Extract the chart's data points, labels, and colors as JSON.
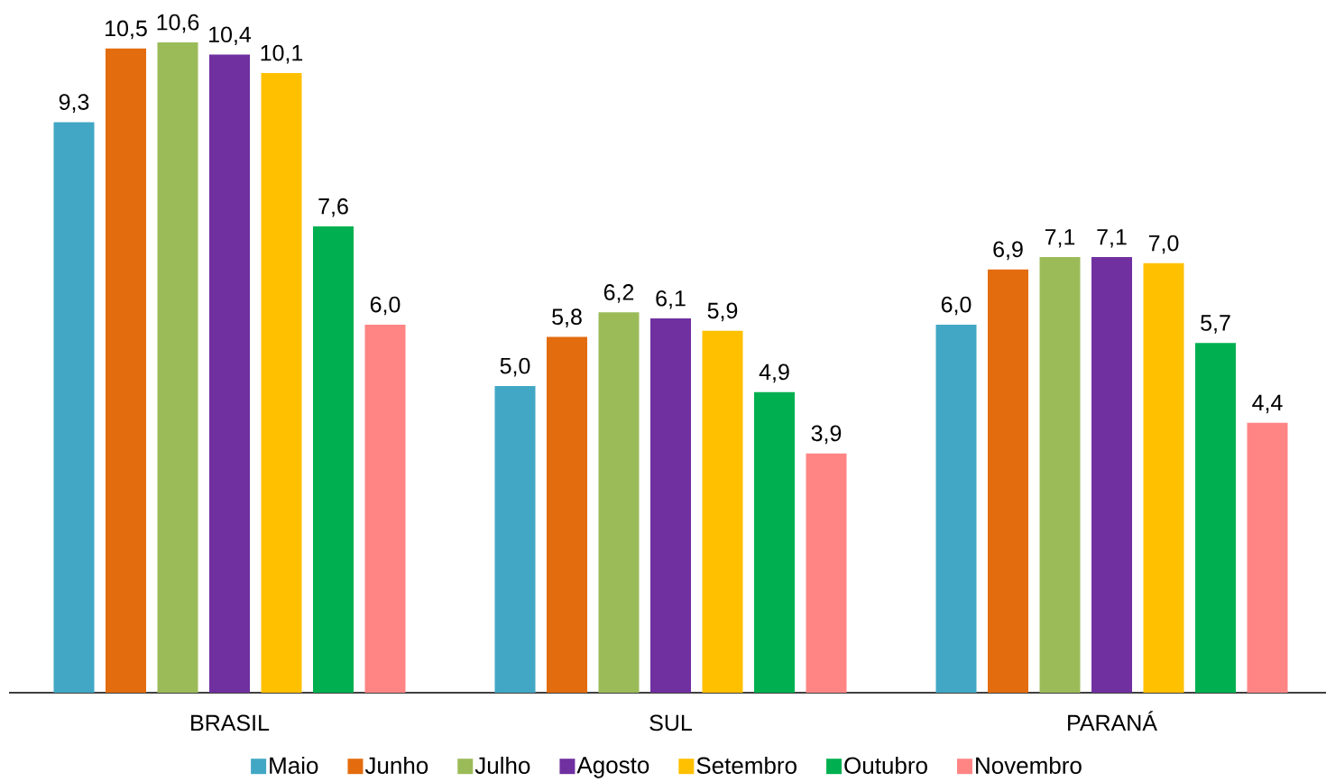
{
  "chart_data": {
    "type": "bar",
    "categories": [
      "BRASIL",
      "SUL",
      "PARANÁ"
    ],
    "legend": "bottom",
    "series": [
      {
        "name": "Maio",
        "color": "#42a7c4",
        "values": [
          9.3,
          5.0,
          6.0
        ],
        "value_labels": [
          "9,3",
          "5,0",
          "6,0"
        ]
      },
      {
        "name": "Junho",
        "color": "#e36c0f",
        "values": [
          10.5,
          5.8,
          6.9
        ],
        "value_labels": [
          "10,5",
          "5,8",
          "6,9"
        ]
      },
      {
        "name": "Julho",
        "color": "#9bbb59",
        "values": [
          10.6,
          6.2,
          7.1
        ],
        "value_labels": [
          "10,6",
          "6,2",
          "7,1"
        ]
      },
      {
        "name": "Agosto",
        "color": "#7030a0",
        "values": [
          10.4,
          6.1,
          7.1
        ],
        "value_labels": [
          "10,4",
          "6,1",
          "7,1"
        ]
      },
      {
        "name": "Setembro",
        "color": "#ffc000",
        "values": [
          10.1,
          5.9,
          7.0
        ],
        "value_labels": [
          "10,1",
          "5,9",
          "7,0"
        ]
      },
      {
        "name": "Outubro",
        "color": "#00b050",
        "values": [
          7.6,
          4.9,
          5.7
        ],
        "value_labels": [
          "7,6",
          "4,9",
          "5,7"
        ]
      },
      {
        "name": "Novembro",
        "color": "#ff8585",
        "values": [
          6.0,
          3.9,
          4.4
        ],
        "value_labels": [
          "6,0",
          "3,9",
          "4,4"
        ]
      }
    ]
  }
}
